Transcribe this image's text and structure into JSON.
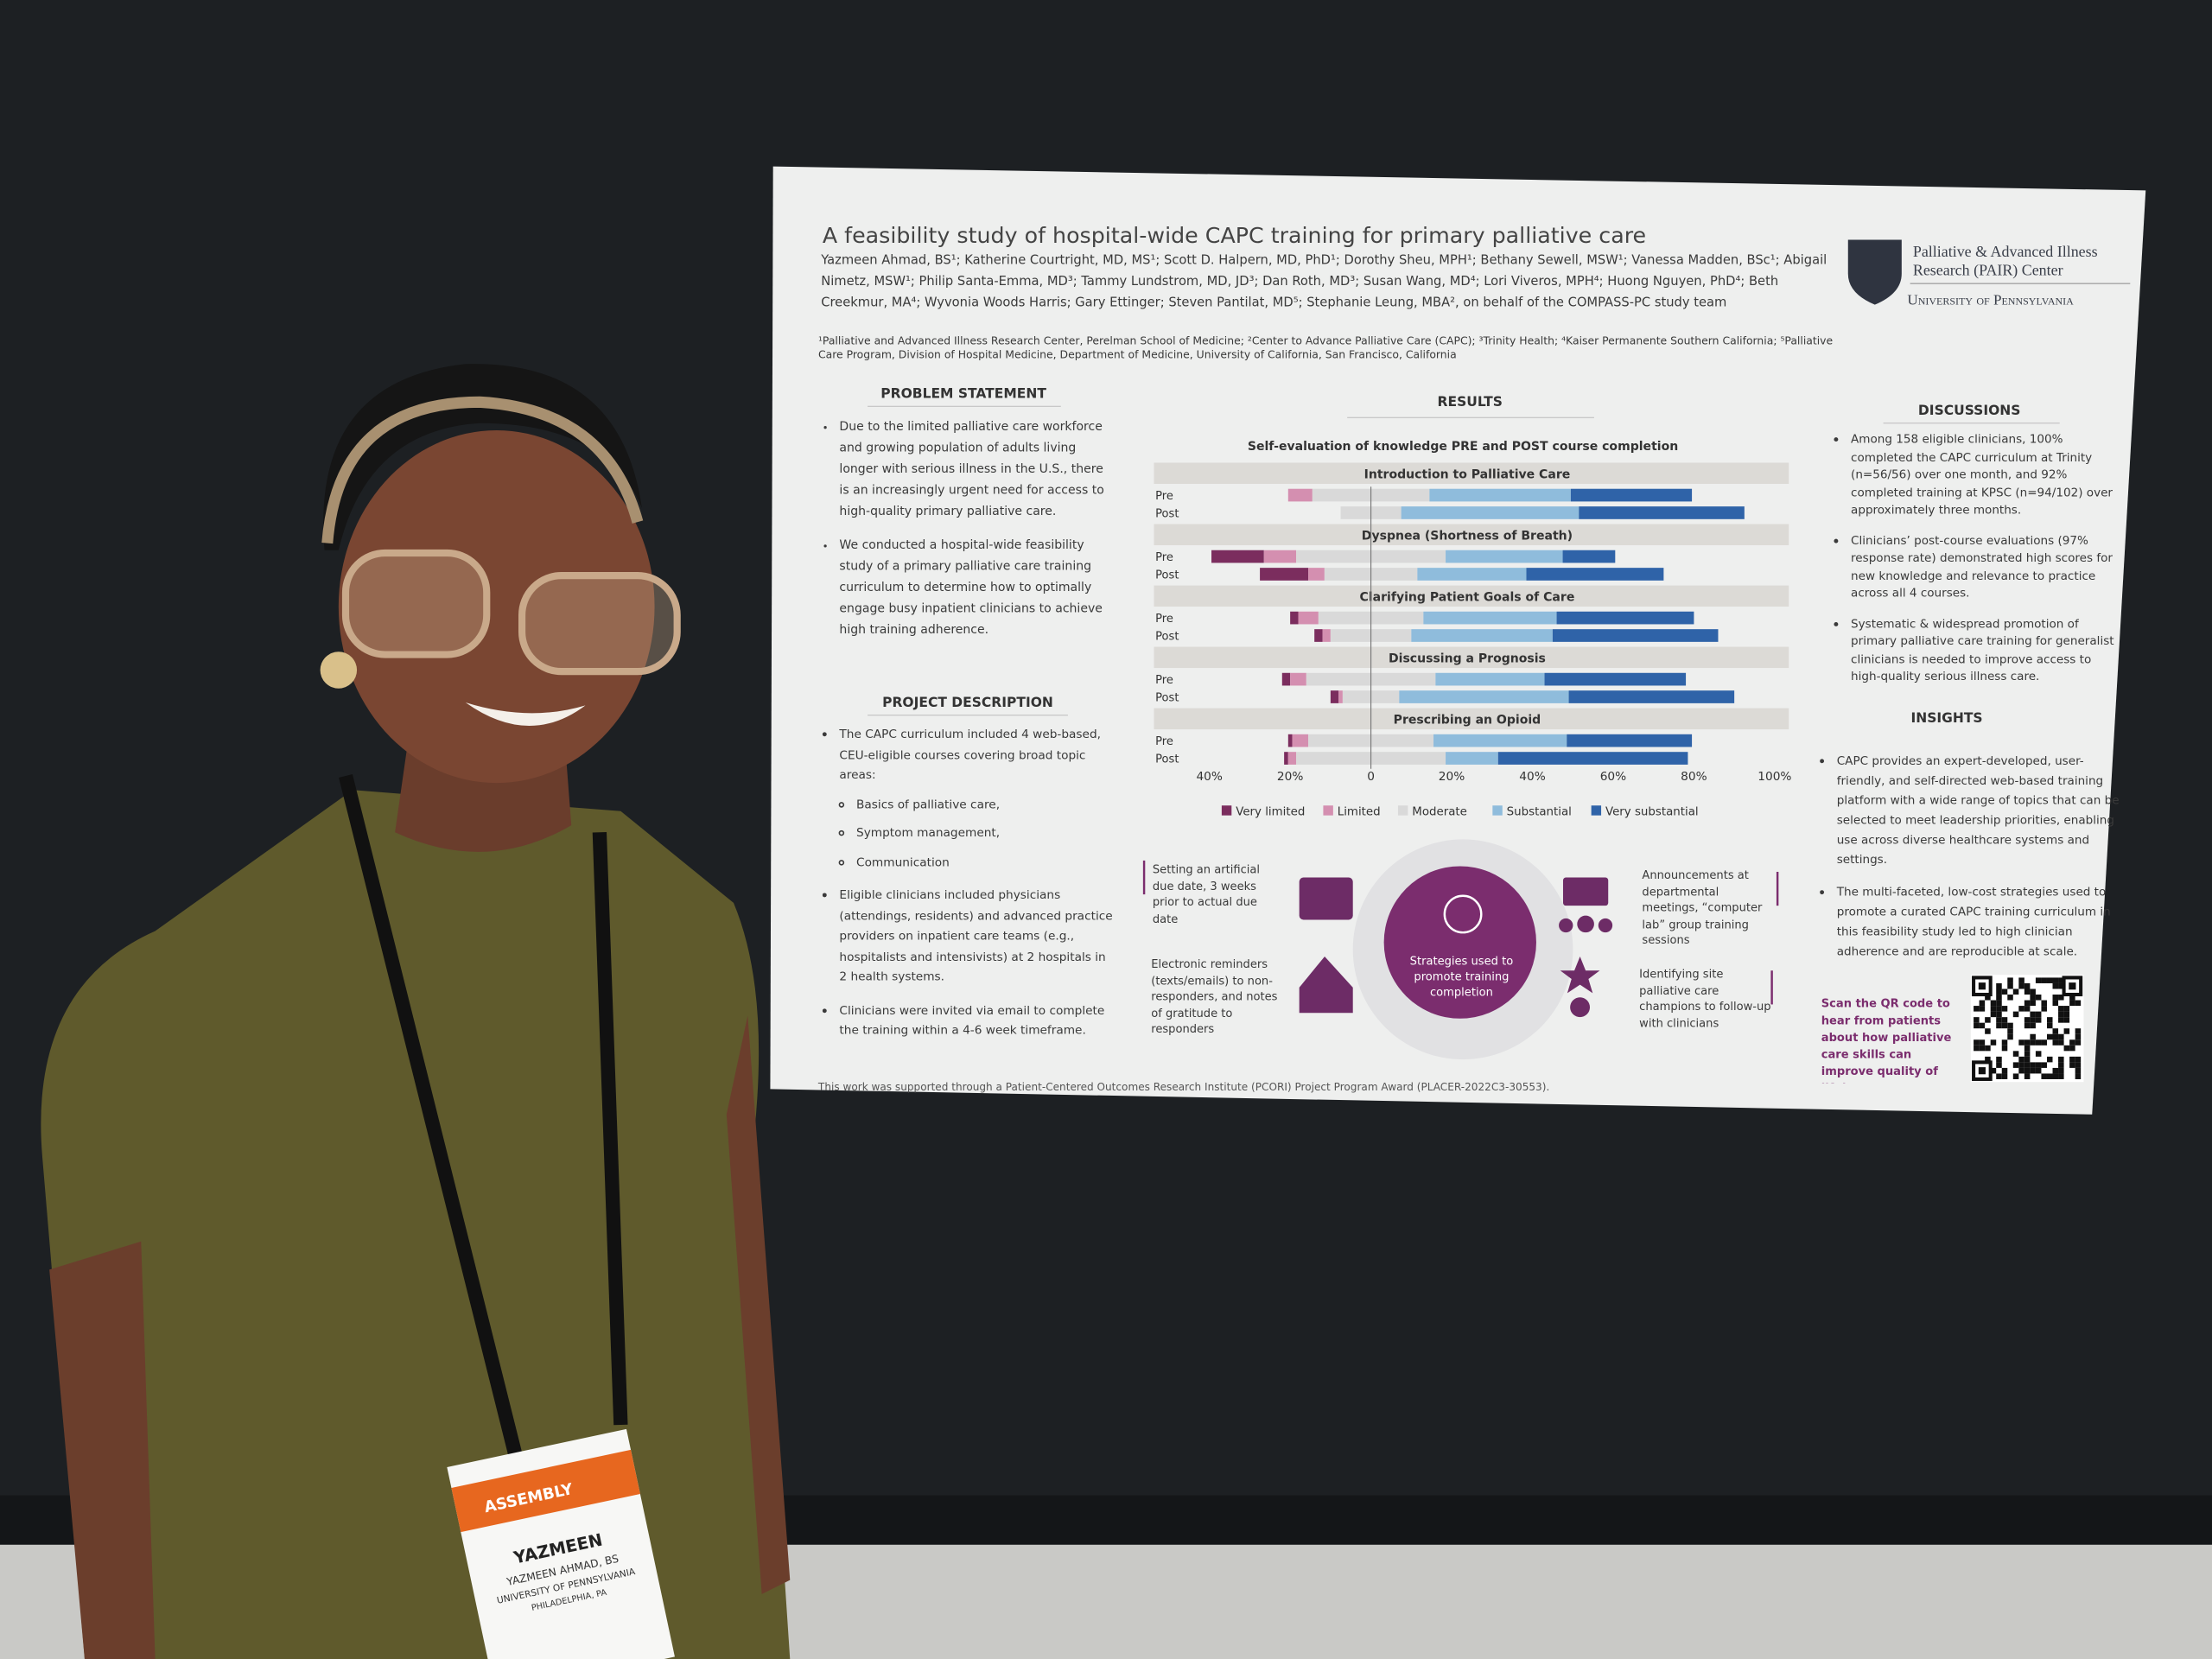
{
  "poster": {
    "title": "A feasibility study of hospital-wide CAPC training for primary palliative care",
    "authors": "Yazmeen Ahmad, BS¹; Katherine Courtright, MD, MS¹; Scott D. Halpern, MD, PhD¹; Dorothy Sheu, MPH¹; Bethany Sewell, MSW¹; Vanessa Madden, BSc¹; Abigail Nimetz, MSW¹; Philip Santa-Emma, MD³; Tammy Lundstrom, MD, JD³; Dan Roth, MD³; Susan Wang, MD⁴; Lori Viveros, MPH⁴; Huong Nguyen, PhD⁴; Beth Creekmur, MA⁴; Wyvonia Woods Harris; Gary Ettinger; Steven Pantilat, MD⁵; Stephanie Leung, MBA², on behalf of the COMPASS-PC study team",
    "affiliations": "¹Palliative and Advanced Illness Research Center, Perelman School of Medicine; ²Center to Advance Palliative Care (CAPC); ³Trinity Health; ⁴Kaiser Permanente Southern California; ⁵Palliative Care Program, Division of Hospital Medicine, Department of Medicine, University of California, San Francisco, California",
    "logo": {
      "line1": "Palliative & Advanced Illness",
      "line2": "Research (PAIR) Center",
      "line3": "University of Pennsylvania"
    },
    "problem": {
      "heading": "PROBLEM STATEMENT",
      "bullets": [
        "Due to the limited palliative care workforce and growing population of adults living longer with serious illness in the U.S., there is an increasingly urgent need for access to high-quality primary palliative care.",
        "We conducted a hospital-wide feasibility study of a primary palliative care training curriculum to determine how to optimally engage busy inpatient clinicians to achieve high training adherence."
      ]
    },
    "project": {
      "heading": "PROJECT DESCRIPTION",
      "bullets": [
        "The CAPC curriculum included 4 web-based, CEU-eligible courses covering broad topic areas:",
        "Eligible clinicians included physicians (attendings, residents) and advanced practice providers on inpatient care teams (e.g., hospitalists and intensivists) at 2 hospitals in 2 health systems.",
        "Clinicians were invited via email to complete the training within a 4-6 week timeframe."
      ],
      "topics": [
        "Basics of palliative care,",
        "Symptom management,",
        "Communication"
      ]
    },
    "results": {
      "heading": "RESULTS"
    },
    "strategies": {
      "center": "Strategies used to promote training completion",
      "items": [
        "Setting an artificial due date, 3 weeks prior to actual due date",
        "Electronic reminders (texts/emails) to non-responders, and notes of gratitude to responders",
        "Announcements at departmental meetings, “computer lab” group training sessions",
        "Identifying site palliative care champions to follow-up with clinicians"
      ]
    },
    "discussions": {
      "heading": "DISCUSSIONS",
      "bullets": [
        "Among 158 eligible clinicians, 100% completed the CAPC curriculum at Trinity (n=56/56) over one month, and 92% completed training at KPSC (n=94/102) over approximately three months.",
        "Clinicians’ post-course evaluations (97% response rate) demonstrated high scores for new knowledge and relevance to practice across all 4 courses.",
        "Systematic & widespread promotion of primary palliative care training for generalist clinicians is needed to improve access to high-quality serious illness care."
      ]
    },
    "insights": {
      "heading": "INSIGHTS",
      "bullets": [
        "CAPC provides an expert-developed, user-friendly, and self-directed web-based training platform with a wide range of topics that can be selected to meet leadership priorities, enabling use across diverse healthcare systems and settings.",
        "The multi-faceted, low-cost strategies used to promote a curated CAPC training curriculum in this feasibility study led to high clinician adherence and are reproducible at scale."
      ]
    },
    "qr_text": "Scan the QR code to hear from patients about how palliative care skills can improve quality of life!",
    "funding": "This work was supported through a Patient-Centered Outcomes Research Institute (PCORI) Project Program Award (PLACER-2022C3-30553)."
  },
  "badge": {
    "event": "ASSEMBLY",
    "name": "YAZMEEN",
    "full_name": "YAZMEEN AHMAD, BS",
    "org": "UNIVERSITY OF PENNSYLVANIA",
    "city": "PHILADELPHIA, PA"
  },
  "chart_data": {
    "type": "diverging-bar",
    "title": "Self-evaluation of knowledge PRE and POST course completion",
    "groups": [
      "Introduction to Palliative Care",
      "Dyspnea (Shortness of Breath)",
      "Clarifying Patient Goals of Care",
      "Discussing a Prognosis",
      "Prescribing an Opioid"
    ],
    "categories": [
      "Pre",
      "Post",
      "Pre",
      "Post",
      "Pre",
      "Post",
      "Pre",
      "Post",
      "Pre",
      "Post"
    ],
    "series": [
      {
        "name": "Very limited",
        "color": "#7b2d5e",
        "values": [
          0,
          0,
          13,
          12,
          2,
          2,
          2,
          2,
          1,
          1
        ]
      },
      {
        "name": "Limited",
        "color": "#d48fb0",
        "values": [
          6,
          0,
          8,
          4,
          5,
          2,
          4,
          1,
          4,
          2
        ]
      },
      {
        "name": "Moderate",
        "color": "#d9d9d9",
        "values": [
          29,
          15,
          37,
          23,
          26,
          20,
          32,
          14,
          31,
          37
        ]
      },
      {
        "name": "Substantial",
        "color": "#8fbcdc",
        "values": [
          35,
          44,
          29,
          27,
          33,
          35,
          27,
          42,
          33,
          13
        ]
      },
      {
        "name": "Very substantial",
        "color": "#2f63a8",
        "values": [
          30,
          41,
          13,
          34,
          34,
          41,
          35,
          41,
          31,
          47
        ]
      }
    ],
    "xlim": [
      -45,
      100
    ],
    "xticks": [
      {
        "value": -40,
        "label": "40%"
      },
      {
        "value": -20,
        "label": "20%"
      },
      0,
      {
        "value": 20,
        "label": "20%"
      },
      {
        "value": 40,
        "label": "40%"
      },
      {
        "value": 60,
        "label": "60%"
      },
      {
        "value": 80,
        "label": "80%"
      },
      {
        "value": 100,
        "label": "100%"
      }
    ]
  }
}
